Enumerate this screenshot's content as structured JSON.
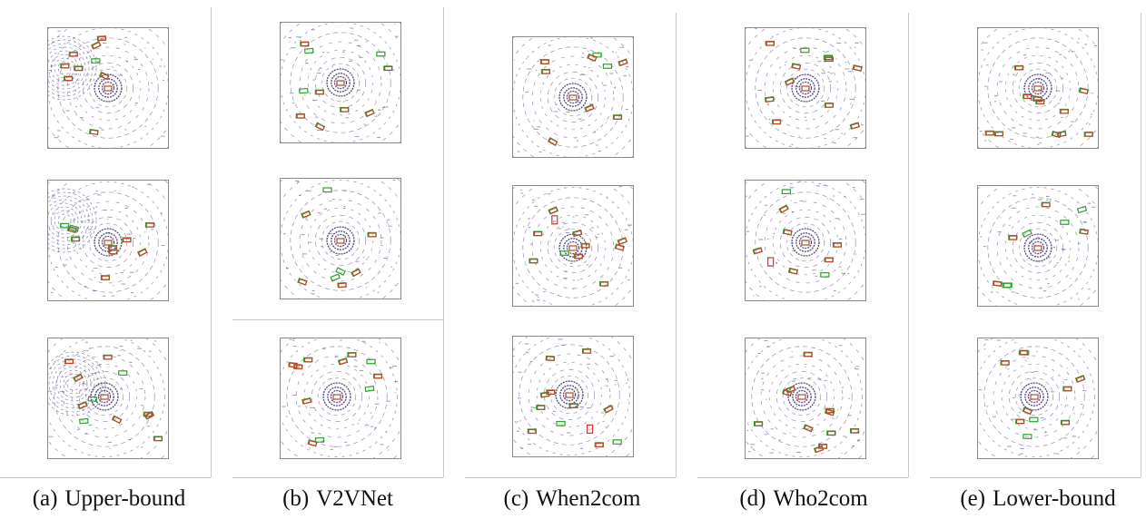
{
  "figure": {
    "captions": [
      {
        "tag": "(a)",
        "label": "Upper-bound"
      },
      {
        "tag": "(b)",
        "label": "V2VNet"
      },
      {
        "tag": "(c)",
        "label": "When2com"
      },
      {
        "tag": "(d)",
        "label": "Who2com"
      },
      {
        "tag": "(e)",
        "label": "Lower-bound"
      }
    ],
    "colors": {
      "lidar": "#3d3575",
      "ground_truth_box": "#2ea02e",
      "prediction_box": "#b8482a",
      "false_positive_box": "#e03030",
      "panel_border": "#8a8a8a"
    }
  }
}
